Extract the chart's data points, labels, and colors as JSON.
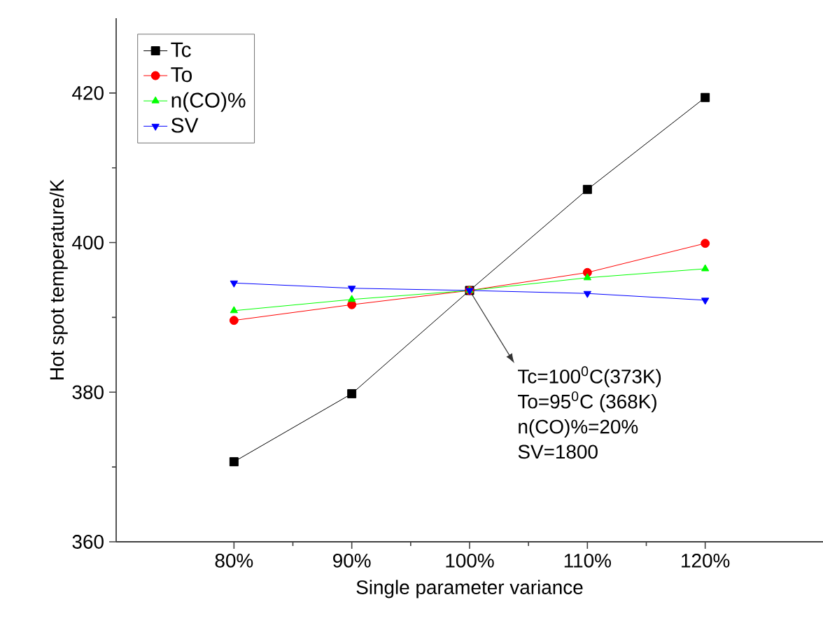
{
  "chart_data": {
    "type": "line",
    "xlabel": "Single parameter variance",
    "ylabel": "Hot spot temperature/K",
    "categories": [
      "80%",
      "90%",
      "100%",
      "110%",
      "120%"
    ],
    "ylim": [
      360,
      430
    ],
    "yticks": [
      360,
      380,
      400,
      420
    ],
    "legend": "top left",
    "line_style": "solid",
    "series": [
      {
        "name": "Tc",
        "color": "#000000",
        "marker": "square",
        "values": [
          370.7,
          379.8,
          393.6,
          407.1,
          419.4
        ]
      },
      {
        "name": "To",
        "color": "#ff0000",
        "marker": "circle",
        "values": [
          389.6,
          391.7,
          393.6,
          396.0,
          399.9
        ]
      },
      {
        "name": "n(CO)%",
        "color": "#00ff00",
        "marker": "triangle",
        "values": [
          390.9,
          392.4,
          393.6,
          395.3,
          396.5
        ]
      },
      {
        "name": "SV",
        "color": "#0000ff",
        "marker": "triangle down",
        "values": [
          394.6,
          393.9,
          393.6,
          393.2,
          392.3
        ]
      }
    ],
    "annotations": [
      {
        "text": "Tc=100$^{0}$C(373K)",
        "x": "100%",
        "y": 393.6
      },
      "To=95$^{0}$C (368K)",
      "n(CO)%=20%",
      "SV=1800"
    ]
  }
}
